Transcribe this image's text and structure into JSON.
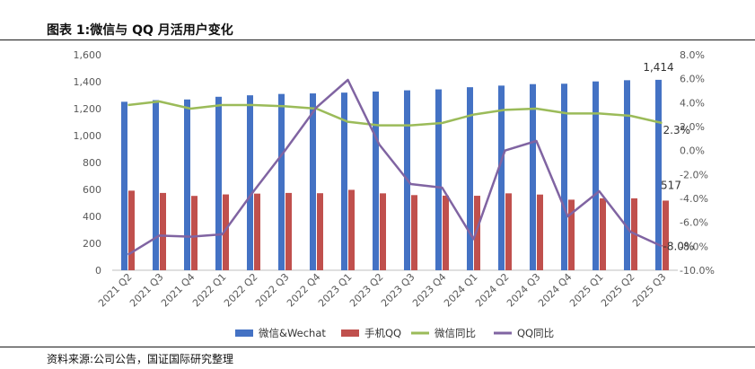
{
  "header": {
    "title": "图表 1:微信与 QQ 月活用户变化"
  },
  "footer": {
    "source": "资料来源:公司公告，国证国际研究整理"
  },
  "chart_data": {
    "type": "bar",
    "title": "",
    "categories": [
      "2021 Q2",
      "2021 Q3",
      "2021 Q4",
      "2022 Q1",
      "2022 Q2",
      "2022 Q3",
      "2022 Q4",
      "2023 Q1",
      "2023 Q2",
      "2023 Q3",
      "2023 Q4",
      "2024 Q1",
      "2024 Q2",
      "2024 Q3",
      "2024 Q4",
      "2025 Q1",
      "2025 Q2",
      "2025 Q3"
    ],
    "y_left": {
      "ticks": [
        "0",
        "200",
        "400",
        "600",
        "800",
        "1,000",
        "1,200",
        "1,400",
        "1,600"
      ],
      "ylim": [
        0,
        1600
      ]
    },
    "y_right": {
      "ticks": [
        "-10.0%",
        "-8.0%",
        "-6.0%",
        "-4.0%",
        "-2.0%",
        "0.0%",
        "2.0%",
        "4.0%",
        "6.0%",
        "8.0%"
      ],
      "ylim": [
        -10,
        8
      ]
    },
    "series": [
      {
        "name": "微信&Wechat",
        "type": "bar",
        "axis": "left",
        "color": "#4472C4",
        "values": [
          1251,
          1263,
          1268,
          1288,
          1299,
          1309,
          1313,
          1319,
          1327,
          1336,
          1343,
          1359,
          1371,
          1382,
          1385,
          1402,
          1411,
          1414
        ]
      },
      {
        "name": "手机QQ",
        "type": "bar",
        "axis": "left",
        "color": "#C0504D",
        "values": [
          591,
          574,
          552,
          563,
          569,
          574,
          572,
          597,
          571,
          558,
          554,
          553,
          571,
          562,
          524,
          534,
          534,
          517
        ]
      },
      {
        "name": "微信同比",
        "type": "line",
        "axis": "right",
        "color": "#9BBB59",
        "values": [
          3.8,
          4.1,
          3.5,
          3.8,
          3.8,
          3.7,
          3.5,
          2.4,
          2.1,
          2.1,
          2.3,
          3.0,
          3.4,
          3.5,
          3.1,
          3.1,
          2.9,
          2.3
        ]
      },
      {
        "name": "QQ同比",
        "type": "line",
        "axis": "right",
        "color": "#8064A2",
        "values": [
          -8.7,
          -7.1,
          -7.2,
          -7.0,
          -3.4,
          0.0,
          3.6,
          5.9,
          0.5,
          -2.8,
          -3.1,
          -7.4,
          0.0,
          0.8,
          -5.5,
          -3.4,
          -6.8,
          -8.0
        ]
      }
    ],
    "data_labels": {
      "wechat_last": "1,414",
      "qq_last": "517",
      "wechat_growth_last": "2.3%",
      "qq_growth_last": "-8.0%"
    },
    "legend": "bottom",
    "grid": false
  }
}
